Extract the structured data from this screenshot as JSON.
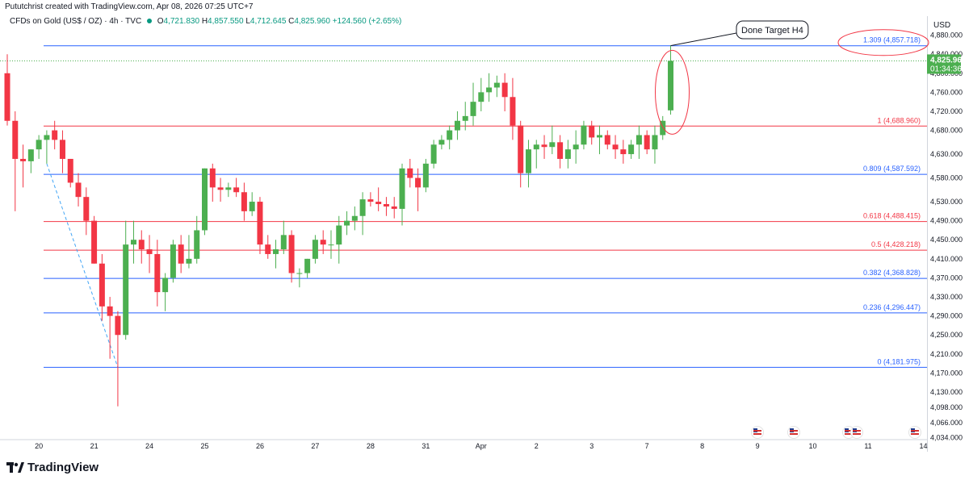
{
  "header": {
    "credit": "Pututchrist created with TradingView.com, Apr 08, 2026 07:25 UTC+7",
    "symbol": "CFDs on Gold (US$ / OZ) · 4h · TVC",
    "open_label": "O",
    "open": "4,721.830",
    "high_label": "H",
    "high": "4,857.550",
    "low_label": "L",
    "low": "4,712.645",
    "close_label": "C",
    "close": "4,825.960",
    "change": "+124.560 (+2.65%)"
  },
  "axis": {
    "currency": "USD"
  },
  "price_badge": {
    "price": "4,825.960",
    "countdown": "01:34:36",
    "color": "#4caf50"
  },
  "annotation": {
    "text": "Done Target H4"
  },
  "branding": {
    "logo_text": "TradingView"
  },
  "colors": {
    "up": "#4caf50",
    "down": "#f23645",
    "fib_blue": "#2962ff",
    "fib_red": "#f23645",
    "ellipse": "#f23645"
  },
  "chart_data": {
    "type": "candlestick",
    "title": "CFDs on Gold (US$ / OZ) · 4h · TVC",
    "ylim": [
      4030,
      4920
    ],
    "y_ticks": [
      "4,880.000",
      "4,840.000",
      "4,800.000",
      "4,760.000",
      "4,720.000",
      "4,680.000",
      "4,630.000",
      "4,580.000",
      "4,530.000",
      "4,490.000",
      "4,450.000",
      "4,410.000",
      "4,370.000",
      "4,330.000",
      "4,290.000",
      "4,250.000",
      "4,210.000",
      "4,170.000",
      "4,130.000",
      "4,098.000",
      "4,066.000",
      "4,034.000"
    ],
    "x_ticks": [
      {
        "label": "20",
        "i": 4
      },
      {
        "label": "21",
        "i": 11
      },
      {
        "label": "24",
        "i": 18
      },
      {
        "label": "25",
        "i": 25
      },
      {
        "label": "26",
        "i": 32
      },
      {
        "label": "27",
        "i": 39
      },
      {
        "label": "28",
        "i": 46
      },
      {
        "label": "31",
        "i": 53
      },
      {
        "label": "Apr",
        "i": 60
      },
      {
        "label": "2",
        "i": 67
      },
      {
        "label": "3",
        "i": 74
      },
      {
        "label": "7",
        "i": 81
      },
      {
        "label": "8",
        "i": 88
      },
      {
        "label": "9",
        "i": 95
      },
      {
        "label": "10",
        "i": 102
      },
      {
        "label": "11",
        "i": 109
      },
      {
        "label": "14",
        "i": 116
      }
    ],
    "fib_levels": [
      {
        "label": "1.309 (4,857.718)",
        "value": 4857.718,
        "color": "#2962ff"
      },
      {
        "label": "1 (4,688.960)",
        "value": 4688.96,
        "color": "#f23645"
      },
      {
        "label": "0.809 (4,587.592)",
        "value": 4587.592,
        "color": "#2962ff"
      },
      {
        "label": "0.618 (4,488.415)",
        "value": 4488.415,
        "color": "#f23645"
      },
      {
        "label": "0.5 (4,428.218)",
        "value": 4428.218,
        "color": "#f23645"
      },
      {
        "label": "0.382 (4,368.828)",
        "value": 4368.828,
        "color": "#2962ff"
      },
      {
        "label": "0.236 (4,296.447)",
        "value": 4296.447,
        "color": "#2962ff"
      },
      {
        "label": "0 (4,181.975)",
        "value": 4181.975,
        "color": "#2962ff"
      }
    ],
    "candles": [
      [
        4800,
        4840,
        4690,
        4700
      ],
      [
        4700,
        4720,
        4510,
        4620
      ],
      [
        4620,
        4650,
        4560,
        4615
      ],
      [
        4615,
        4640,
        4590,
        4640
      ],
      [
        4640,
        4670,
        4620,
        4660
      ],
      [
        4660,
        4680,
        4610,
        4670
      ],
      [
        4680,
        4700,
        4640,
        4660
      ],
      [
        4660,
        4680,
        4590,
        4620
      ],
      [
        4620,
        4620,
        4560,
        4570
      ],
      [
        4570,
        4590,
        4520,
        4540
      ],
      [
        4540,
        4560,
        4460,
        4490
      ],
      [
        4490,
        4500,
        4400,
        4400
      ],
      [
        4400,
        4420,
        4280,
        4310
      ],
      [
        4310,
        4330,
        4200,
        4290
      ],
      [
        4290,
        4300,
        4100,
        4250
      ],
      [
        4250,
        4490,
        4240,
        4440
      ],
      [
        4440,
        4490,
        4400,
        4450
      ],
      [
        4450,
        4470,
        4400,
        4430
      ],
      [
        4430,
        4460,
        4380,
        4420
      ],
      [
        4420,
        4450,
        4310,
        4340
      ],
      [
        4340,
        4380,
        4300,
        4370
      ],
      [
        4370,
        4450,
        4360,
        4440
      ],
      [
        4440,
        4460,
        4380,
        4400
      ],
      [
        4400,
        4460,
        4390,
        4410
      ],
      [
        4410,
        4500,
        4400,
        4470
      ],
      [
        4470,
        4600,
        4460,
        4600
      ],
      [
        4600,
        4610,
        4530,
        4560
      ],
      [
        4560,
        4580,
        4530,
        4555
      ],
      [
        4555,
        4570,
        4540,
        4560
      ],
      [
        4560,
        4580,
        4540,
        4550
      ],
      [
        4550,
        4570,
        4490,
        4510
      ],
      [
        4510,
        4550,
        4500,
        4530
      ],
      [
        4530,
        4540,
        4420,
        4440
      ],
      [
        4440,
        4460,
        4410,
        4420
      ],
      [
        4420,
        4450,
        4390,
        4430
      ],
      [
        4430,
        4490,
        4420,
        4460
      ],
      [
        4460,
        4470,
        4360,
        4380
      ],
      [
        4380,
        4390,
        4350,
        4380
      ],
      [
        4380,
        4410,
        4370,
        4410
      ],
      [
        4410,
        4460,
        4400,
        4450
      ],
      [
        4450,
        4470,
        4420,
        4440
      ],
      [
        4440,
        4470,
        4410,
        4440
      ],
      [
        4440,
        4500,
        4400,
        4480
      ],
      [
        4480,
        4510,
        4460,
        4490
      ],
      [
        4490,
        4520,
        4470,
        4500
      ],
      [
        4500,
        4550,
        4460,
        4535
      ],
      [
        4535,
        4550,
        4520,
        4530
      ],
      [
        4530,
        4560,
        4510,
        4525
      ],
      [
        4525,
        4540,
        4500,
        4520
      ],
      [
        4520,
        4540,
        4495,
        4515
      ],
      [
        4515,
        4610,
        4480,
        4600
      ],
      [
        4600,
        4620,
        4560,
        4580
      ],
      [
        4580,
        4600,
        4510,
        4560
      ],
      [
        4560,
        4620,
        4550,
        4610
      ],
      [
        4610,
        4660,
        4600,
        4650
      ],
      [
        4650,
        4670,
        4640,
        4660
      ],
      [
        4660,
        4690,
        4640,
        4680
      ],
      [
        4680,
        4720,
        4660,
        4700
      ],
      [
        4700,
        4740,
        4680,
        4710
      ],
      [
        4710,
        4780,
        4690,
        4740
      ],
      [
        4740,
        4790,
        4720,
        4760
      ],
      [
        4760,
        4800,
        4740,
        4770
      ],
      [
        4770,
        4795,
        4750,
        4780
      ],
      [
        4780,
        4800,
        4720,
        4750
      ],
      [
        4750,
        4790,
        4660,
        4690
      ],
      [
        4690,
        4700,
        4560,
        4590
      ],
      [
        4590,
        4660,
        4560,
        4640
      ],
      [
        4640,
        4660,
        4600,
        4650
      ],
      [
        4650,
        4670,
        4620,
        4645
      ],
      [
        4645,
        4690,
        4630,
        4655
      ],
      [
        4655,
        4670,
        4600,
        4620
      ],
      [
        4620,
        4660,
        4600,
        4640
      ],
      [
        4640,
        4680,
        4610,
        4650
      ],
      [
        4650,
        4700,
        4640,
        4690
      ],
      [
        4690,
        4700,
        4650,
        4665
      ],
      [
        4665,
        4690,
        4630,
        4670
      ],
      [
        4670,
        4680,
        4640,
        4650
      ],
      [
        4650,
        4670,
        4620,
        4640
      ],
      [
        4640,
        4660,
        4610,
        4630
      ],
      [
        4630,
        4660,
        4620,
        4650
      ],
      [
        4650,
        4690,
        4620,
        4670
      ],
      [
        4670,
        4680,
        4630,
        4640
      ],
      [
        4640,
        4690,
        4610,
        4670
      ],
      [
        4670,
        4710,
        4660,
        4700
      ],
      [
        4722,
        4858,
        4713,
        4826
      ]
    ]
  }
}
